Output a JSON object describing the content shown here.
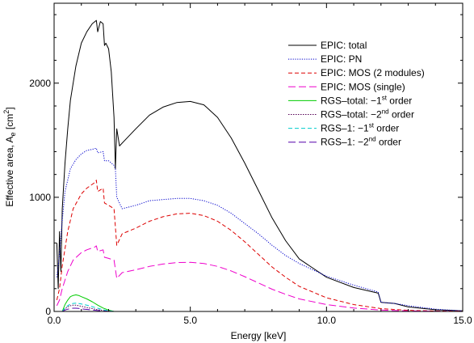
{
  "chart_data": {
    "type": "line",
    "title": "",
    "xlabel": "Energy [keV]",
    "ylabel_parts": [
      "Effective area, A",
      "e",
      " [cm",
      "2",
      "]"
    ],
    "xlim": [
      0,
      15
    ],
    "ylim": [
      0,
      2700
    ],
    "x_ticks": [
      0,
      5,
      10,
      15
    ],
    "x_tick_labels": [
      "0.0",
      "5.0",
      "10.0",
      "15.0"
    ],
    "y_ticks": [
      0,
      1000,
      2000
    ],
    "y_tick_labels": [
      "0",
      "1000",
      "2000"
    ],
    "grid": false,
    "legend_position": "top-right",
    "series": [
      {
        "name": "EPIC: total",
        "legend_parts": [
          "EPIC: total"
        ],
        "color": "#000000",
        "dash": "",
        "x": [
          0.1,
          0.15,
          0.2,
          0.25,
          0.3,
          0.4,
          0.5,
          0.6,
          0.8,
          1.0,
          1.2,
          1.4,
          1.55,
          1.6,
          1.7,
          1.8,
          1.85,
          1.9,
          2.0,
          2.1,
          2.2,
          2.25,
          2.3,
          2.4,
          2.6,
          3.0,
          3.5,
          4.0,
          4.5,
          5.0,
          5.5,
          6.0,
          6.5,
          7.0,
          7.5,
          8.0,
          8.5,
          9.0,
          10.0,
          11.0,
          11.9,
          12.0,
          12.5,
          13.0,
          14.0,
          15.0
        ],
        "y": [
          600,
          200,
          700,
          350,
          900,
          1300,
          1600,
          1850,
          2150,
          2350,
          2450,
          2520,
          2550,
          2450,
          2540,
          2520,
          2330,
          2350,
          2300,
          2100,
          1700,
          1250,
          1600,
          1450,
          1500,
          1600,
          1720,
          1790,
          1830,
          1840,
          1810,
          1700,
          1520,
          1300,
          1060,
          820,
          620,
          460,
          300,
          210,
          160,
          80,
          70,
          40,
          15,
          5
        ]
      },
      {
        "name": "EPIC: PN",
        "legend_parts": [
          "EPIC: PN"
        ],
        "color": "#0000cc",
        "dash": "1.2,1.6",
        "x": [
          0.1,
          0.2,
          0.3,
          0.4,
          0.6,
          0.8,
          1.0,
          1.2,
          1.4,
          1.55,
          1.6,
          1.8,
          1.85,
          2.0,
          2.2,
          2.25,
          2.3,
          2.5,
          3.0,
          3.5,
          4.0,
          4.5,
          5.0,
          5.5,
          6.0,
          6.5,
          7.0,
          7.5,
          8.0,
          8.5,
          9.0,
          10.0,
          11.0,
          11.9,
          12.0,
          12.5,
          13.0,
          14.0,
          15.0
        ],
        "y": [
          300,
          500,
          800,
          1050,
          1250,
          1330,
          1380,
          1410,
          1420,
          1430,
          1390,
          1400,
          1320,
          1320,
          1280,
          1250,
          1000,
          900,
          930,
          970,
          980,
          990,
          990,
          970,
          930,
          860,
          770,
          680,
          580,
          490,
          420,
          310,
          230,
          170,
          80,
          70,
          50,
          20,
          5
        ]
      },
      {
        "name": "EPIC: MOS (2 modules)",
        "legend_parts": [
          "EPIC: MOS (2 modules)"
        ],
        "color": "#dd0000",
        "dash": "5,3",
        "x": [
          0.1,
          0.2,
          0.3,
          0.5,
          0.7,
          1.0,
          1.2,
          1.5,
          1.55,
          1.6,
          1.8,
          1.85,
          2.0,
          2.2,
          2.3,
          2.5,
          3.0,
          3.5,
          4.0,
          4.5,
          5.0,
          5.5,
          6.0,
          6.5,
          7.0,
          7.5,
          8.0,
          8.5,
          9.0,
          10.0,
          11.0,
          12.0,
          13.0,
          14.0,
          15.0
        ],
        "y": [
          100,
          200,
          400,
          700,
          900,
          1030,
          1080,
          1130,
          1150,
          1050,
          1080,
          950,
          930,
          900,
          580,
          680,
          730,
          790,
          830,
          855,
          860,
          840,
          790,
          710,
          610,
          500,
          390,
          300,
          220,
          120,
          60,
          25,
          10,
          4,
          2
        ]
      },
      {
        "name": "EPIC: MOS (single)",
        "legend_parts": [
          "EPIC: MOS (single)"
        ],
        "color": "#ee00cc",
        "dash": "9,4",
        "x": [
          0.1,
          0.2,
          0.3,
          0.5,
          0.7,
          1.0,
          1.2,
          1.5,
          1.55,
          1.6,
          1.8,
          1.85,
          2.0,
          2.2,
          2.3,
          2.5,
          3.0,
          3.5,
          4.0,
          4.5,
          5.0,
          5.5,
          6.0,
          6.5,
          7.0,
          7.5,
          8.0,
          8.5,
          9.0,
          10.0,
          11.0,
          12.0,
          13.0,
          14.0,
          15.0
        ],
        "y": [
          50,
          100,
          200,
          350,
          450,
          515,
          540,
          565,
          575,
          525,
          540,
          475,
          465,
          450,
          290,
          340,
          365,
          395,
          415,
          428,
          430,
          420,
          395,
          355,
          305,
          250,
          195,
          150,
          110,
          60,
          30,
          12,
          5,
          2,
          1
        ]
      },
      {
        "name": "RGS–total: −1st order",
        "legend_parts": [
          "RGS–total: −1",
          "st",
          " order"
        ],
        "color": "#00cc00",
        "dash": "",
        "x": [
          0.3,
          0.4,
          0.5,
          0.6,
          0.7,
          0.8,
          0.9,
          1.0,
          1.2,
          1.4,
          1.6,
          1.8,
          2.0,
          2.2
        ],
        "y": [
          0,
          60,
          100,
          130,
          140,
          145,
          140,
          130,
          110,
          85,
          55,
          30,
          12,
          0
        ]
      },
      {
        "name": "RGS–total: −2nd order",
        "legend_parts": [
          "RGS–total: −2",
          "nd",
          " order"
        ],
        "color": "#550055",
        "dash": "1.5,1.5",
        "x": [
          0.3,
          0.4,
          0.5,
          0.6,
          0.7,
          0.8,
          0.9,
          1.0,
          1.2,
          1.4,
          1.6,
          1.8,
          2.0,
          2.2
        ],
        "y": [
          0,
          25,
          40,
          50,
          55,
          55,
          50,
          45,
          35,
          25,
          15,
          8,
          3,
          0
        ]
      },
      {
        "name": "RGS–1: −1st order",
        "legend_parts": [
          "RGS–1: −1",
          "st",
          " order"
        ],
        "color": "#00cccc",
        "dash": "5,3",
        "x": [
          0.3,
          0.4,
          0.5,
          0.6,
          0.7,
          0.8,
          0.9,
          1.0,
          1.2,
          1.4,
          1.6,
          1.8,
          2.0,
          2.2
        ],
        "y": [
          0,
          30,
          50,
          65,
          70,
          72,
          70,
          65,
          55,
          42,
          28,
          15,
          6,
          0
        ]
      },
      {
        "name": "RGS–1: −2nd order",
        "legend_parts": [
          "RGS–1: −2",
          "nd",
          " order"
        ],
        "color": "#5500aa",
        "dash": "9,4",
        "x": [
          0.3,
          0.4,
          0.5,
          0.6,
          0.7,
          0.8,
          0.9,
          1.0,
          1.2,
          1.4,
          1.6,
          1.8,
          2.0,
          2.2
        ],
        "y": [
          0,
          12,
          20,
          25,
          28,
          28,
          26,
          23,
          18,
          13,
          8,
          4,
          2,
          0
        ]
      }
    ]
  }
}
